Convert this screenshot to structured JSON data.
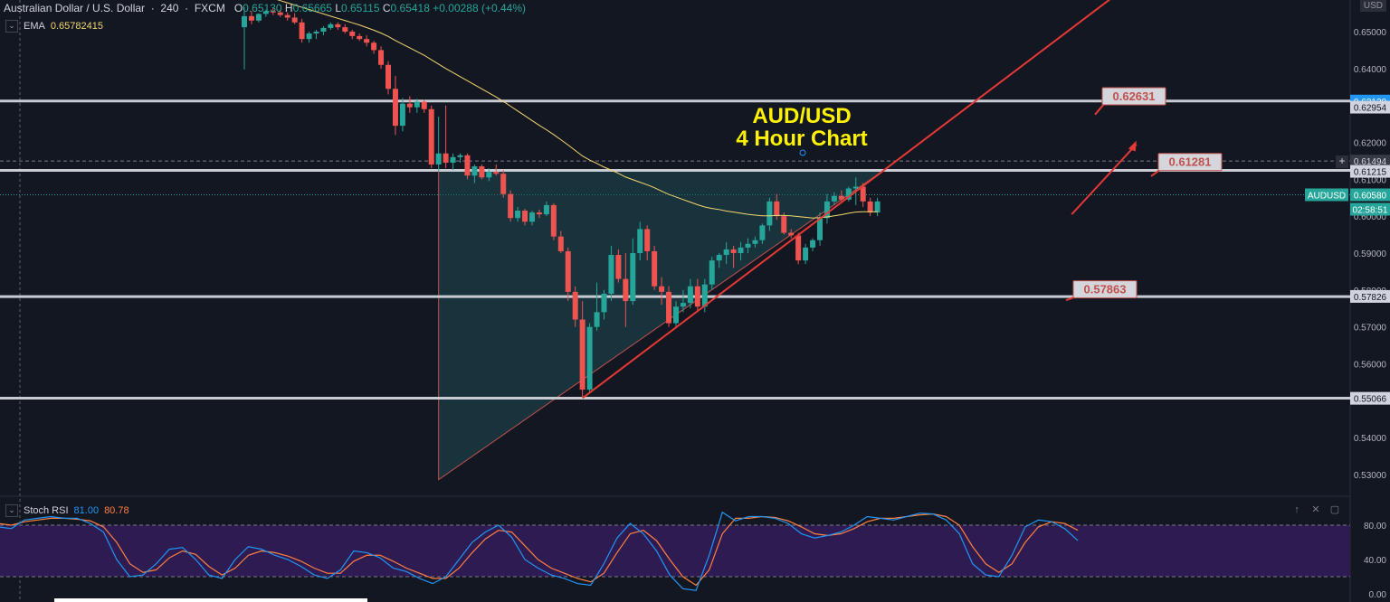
{
  "header": {
    "symbol": "Australian Dollar / U.S. Dollar",
    "interval": "240",
    "source": "FXCM",
    "o_label": "O",
    "o_value": "0.65130",
    "h_label": "H",
    "h_value": "0.65665",
    "l_label": "L",
    "l_value": "0.65115",
    "c_label": "C",
    "c_value": "0.65418",
    "change": "+0.00288 (+0.44%)"
  },
  "ema": {
    "label": "EMA",
    "value": "0.65782415"
  },
  "stoch": {
    "label": "Stoch RSI",
    "k": "81.00",
    "d": "80.78"
  },
  "currency": "USD",
  "colors": {
    "background": "#131722",
    "bull": "#26a69a",
    "bear": "#ef5350",
    "ema": "#f5d76e",
    "trendline": "#e53935",
    "triangle_fill": "#1f4a52",
    "stoch_k": "#2196f3",
    "stoch_d": "#ff7f3f",
    "stoch_band": "#2d1b52"
  },
  "chart_data": {
    "type": "candlestick",
    "title": "AUD/USD\n4 Hour Chart",
    "ylim": [
      0.523,
      0.657
    ],
    "price_ticks": [
      0.65,
      0.64,
      0.63,
      0.62,
      0.61,
      0.6,
      0.59,
      0.58,
      0.57,
      0.56,
      0.55,
      0.54,
      0.53
    ],
    "price_tick_labels": [
      "0.65000",
      "0.64000",
      "0.63000",
      "0.62000",
      "0.61000",
      "0.60000",
      "0.59000",
      "0.58000",
      "0.57000",
      "0.56000",
      "0.55000",
      "0.54000",
      "0.53000"
    ],
    "horizontal_levels": [
      0.6312,
      0.6124,
      0.5782,
      0.5507
    ],
    "axis_labels": [
      {
        "value": 0.6312,
        "text": "0.63120",
        "style": "blue"
      },
      {
        "value": 0.62954,
        "text": "0.62954",
        "style": "light"
      },
      {
        "value": 0.61494,
        "text": "0.61494",
        "style": "dark"
      },
      {
        "value": 0.61215,
        "text": "0.61215",
        "style": "light"
      },
      {
        "value": 0.6058,
        "text": "AUDUSD",
        "style": "teal"
      },
      {
        "value": 0.6058,
        "text": "0.60580",
        "style": "teal"
      },
      {
        "value": 0.6036,
        "text": "02:58:51",
        "style": "teal"
      },
      {
        "value": 0.57826,
        "text": "0.57826",
        "style": "light"
      },
      {
        "value": 0.55066,
        "text": "0.55066",
        "style": "light"
      }
    ],
    "annotations": [
      {
        "text": "0.62631",
        "price": 0.6326,
        "arrow_from_price": 0.6285
      },
      {
        "text": "0.61281",
        "price": 0.6148,
        "arrow_from_price": 0.6118
      },
      {
        "text": "0.57863",
        "price": 0.5803,
        "arrow_from_price": 0.5782
      }
    ],
    "candles": [
      [
        0.6512,
        0.6566,
        0.6398,
        0.6542
      ],
      [
        0.6542,
        0.6556,
        0.652,
        0.653
      ],
      [
        0.653,
        0.655,
        0.6525,
        0.6548
      ],
      [
        0.6548,
        0.656,
        0.654,
        0.6555
      ],
      [
        0.6555,
        0.6565,
        0.6545,
        0.6552
      ],
      [
        0.6552,
        0.656,
        0.654,
        0.6545
      ],
      [
        0.6545,
        0.6552,
        0.653,
        0.6538
      ],
      [
        0.6538,
        0.655,
        0.652,
        0.6525
      ],
      [
        0.6525,
        0.6535,
        0.647,
        0.648
      ],
      [
        0.648,
        0.65,
        0.647,
        0.6495
      ],
      [
        0.6495,
        0.6505,
        0.648,
        0.65
      ],
      [
        0.65,
        0.6515,
        0.649,
        0.651
      ],
      [
        0.651,
        0.6525,
        0.6505,
        0.652
      ],
      [
        0.652,
        0.6525,
        0.6505,
        0.6512
      ],
      [
        0.6512,
        0.652,
        0.6495,
        0.65
      ],
      [
        0.65,
        0.6505,
        0.648,
        0.6488
      ],
      [
        0.6488,
        0.6495,
        0.6475,
        0.648
      ],
      [
        0.648,
        0.649,
        0.646,
        0.647
      ],
      [
        0.647,
        0.6475,
        0.644,
        0.645
      ],
      [
        0.645,
        0.646,
        0.64,
        0.641
      ],
      [
        0.641,
        0.642,
        0.633,
        0.6345
      ],
      [
        0.6345,
        0.638,
        0.622,
        0.6245
      ],
      [
        0.6245,
        0.632,
        0.623,
        0.6305
      ],
      [
        0.6305,
        0.6325,
        0.628,
        0.6295
      ],
      [
        0.6295,
        0.6318,
        0.628,
        0.631
      ],
      [
        0.631,
        0.6315,
        0.628,
        0.629
      ],
      [
        0.629,
        0.63,
        0.613,
        0.614
      ],
      [
        0.614,
        0.627,
        0.612,
        0.617
      ],
      [
        0.617,
        0.63,
        0.613,
        0.6145
      ],
      [
        0.6145,
        0.617,
        0.6125,
        0.616
      ],
      [
        0.616,
        0.617,
        0.6145,
        0.6165
      ],
      [
        0.6165,
        0.617,
        0.61,
        0.611
      ],
      [
        0.611,
        0.614,
        0.609,
        0.6135
      ],
      [
        0.6135,
        0.614,
        0.61,
        0.6105
      ],
      [
        0.6105,
        0.613,
        0.6095,
        0.612
      ],
      [
        0.612,
        0.614,
        0.611,
        0.6115
      ],
      [
        0.6115,
        0.6125,
        0.605,
        0.606
      ],
      [
        0.606,
        0.607,
        0.5985,
        0.5995
      ],
      [
        0.5995,
        0.6025,
        0.5985,
        0.6015
      ],
      [
        0.6015,
        0.602,
        0.5975,
        0.5985
      ],
      [
        0.5985,
        0.6015,
        0.5975,
        0.601
      ],
      [
        0.601,
        0.6018,
        0.5995,
        0.6005
      ],
      [
        0.6005,
        0.604,
        0.6,
        0.603
      ],
      [
        0.603,
        0.6035,
        0.5935,
        0.5945
      ],
      [
        0.5945,
        0.596,
        0.59,
        0.5905
      ],
      [
        0.5905,
        0.5915,
        0.577,
        0.5795
      ],
      [
        0.5795,
        0.581,
        0.57,
        0.572
      ],
      [
        0.572,
        0.577,
        0.551,
        0.553
      ],
      [
        0.553,
        0.571,
        0.552,
        0.57
      ],
      [
        0.57,
        0.582,
        0.569,
        0.574
      ],
      [
        0.574,
        0.58,
        0.572,
        0.579
      ],
      [
        0.579,
        0.592,
        0.577,
        0.5895
      ],
      [
        0.5895,
        0.591,
        0.582,
        0.583
      ],
      [
        0.583,
        0.59,
        0.57,
        0.577
      ],
      [
        0.577,
        0.594,
        0.576,
        0.59
      ],
      [
        0.59,
        0.5985,
        0.588,
        0.5965
      ],
      [
        0.5965,
        0.5975,
        0.588,
        0.5905
      ],
      [
        0.5905,
        0.592,
        0.58,
        0.581
      ],
      [
        0.581,
        0.5835,
        0.576,
        0.5795
      ],
      [
        0.5795,
        0.581,
        0.57,
        0.571
      ],
      [
        0.571,
        0.577,
        0.57,
        0.5755
      ],
      [
        0.5755,
        0.58,
        0.574,
        0.5765
      ],
      [
        0.5765,
        0.583,
        0.575,
        0.581
      ],
      [
        0.581,
        0.583,
        0.574,
        0.5755
      ],
      [
        0.5755,
        0.583,
        0.574,
        0.5815
      ],
      [
        0.5815,
        0.589,
        0.58,
        0.588
      ],
      [
        0.588,
        0.59,
        0.586,
        0.5895
      ],
      [
        0.5895,
        0.593,
        0.587,
        0.591
      ],
      [
        0.591,
        0.592,
        0.586,
        0.59
      ],
      [
        0.59,
        0.593,
        0.588,
        0.5915
      ],
      [
        0.5915,
        0.594,
        0.59,
        0.5925
      ],
      [
        0.5925,
        0.5945,
        0.5915,
        0.5935
      ],
      [
        0.5935,
        0.598,
        0.5925,
        0.5975
      ],
      [
        0.5975,
        0.605,
        0.596,
        0.604
      ],
      [
        0.604,
        0.606,
        0.599,
        0.6
      ],
      [
        0.6,
        0.601,
        0.595,
        0.5955
      ],
      [
        0.5955,
        0.5965,
        0.594,
        0.5948
      ],
      [
        0.5948,
        0.5955,
        0.587,
        0.588
      ],
      [
        0.588,
        0.5925,
        0.587,
        0.5915
      ],
      [
        0.5915,
        0.594,
        0.5905,
        0.5935
      ],
      [
        0.5935,
        0.601,
        0.592,
        0.5995
      ],
      [
        0.5995,
        0.606,
        0.598,
        0.604
      ],
      [
        0.604,
        0.6065,
        0.603,
        0.6055
      ],
      [
        0.6055,
        0.607,
        0.604,
        0.6045
      ],
      [
        0.6045,
        0.608,
        0.604,
        0.6075
      ],
      [
        0.6075,
        0.6105,
        0.603,
        0.608
      ],
      [
        0.608,
        0.609,
        0.6025,
        0.604
      ],
      [
        0.604,
        0.605,
        0.6,
        0.601
      ],
      [
        0.601,
        0.605,
        0.6,
        0.604
      ]
    ],
    "ema_values": [
      0.662,
      0.6612,
      0.6604,
      0.6597,
      0.659,
      0.6584,
      0.6578,
      0.6572,
      0.6566,
      0.656,
      0.6554,
      0.6548,
      0.6542,
      0.6536,
      0.653,
      0.6524,
      0.6518,
      0.6511,
      0.6504,
      0.6496,
      0.6487,
      0.6476,
      0.6466,
      0.6456,
      0.6446,
      0.6436,
      0.6424,
      0.6412,
      0.64,
      0.6389,
      0.6378,
      0.6367,
      0.6356,
      0.6345,
      0.6334,
      0.6323,
      0.6311,
      0.6298,
      0.6285,
      0.6272,
      0.6259,
      0.6246,
      0.6234,
      0.6221,
      0.6207,
      0.6193,
      0.6178,
      0.6163,
      0.6152,
      0.6143,
      0.6133,
      0.6125,
      0.6116,
      0.6106,
      0.6099,
      0.6092,
      0.6085,
      0.6077,
      0.6068,
      0.6059,
      0.6052,
      0.6045,
      0.6038,
      0.6031,
      0.6025,
      0.6021,
      0.6018,
      0.6014,
      0.6011,
      0.6008,
      0.6005,
      0.6003,
      0.6001,
      0.6001,
      0.6002,
      0.6002,
      0.6001,
      0.5999,
      0.5997,
      0.5995,
      0.5996,
      0.5998,
      0.6001,
      0.6004,
      0.6008,
      0.6011,
      0.6012,
      0.6012,
      0.6012
    ],
    "triangle": [
      [
        27,
        0.6126
      ],
      [
        89,
        0.6126
      ],
      [
        27,
        0.5286
      ]
    ],
    "support_line": [
      [
        47,
        0.5507
      ],
      [
        89,
        0.6126
      ]
    ],
    "stoch_k": [
      78,
      76,
      86,
      88,
      90,
      88,
      88,
      82,
      72,
      40,
      20,
      22,
      35,
      52,
      54,
      40,
      22,
      18,
      40,
      55,
      52,
      45,
      40,
      32,
      22,
      18,
      28,
      50,
      48,
      42,
      30,
      26,
      18,
      12,
      20,
      40,
      60,
      72,
      80,
      66,
      40,
      30,
      22,
      18,
      12,
      10,
      35,
      65,
      82,
      70,
      50,
      22,
      6,
      4,
      45,
      95,
      85,
      90,
      90,
      88,
      82,
      70,
      65,
      68,
      72,
      80,
      90,
      88,
      86,
      90,
      94,
      93,
      86,
      70,
      35,
      22,
      20,
      45,
      78,
      86,
      84,
      76,
      62
    ],
    "stoch_d": [
      82,
      80,
      84,
      86,
      88,
      88,
      87,
      85,
      78,
      60,
      35,
      25,
      28,
      42,
      50,
      46,
      32,
      22,
      30,
      45,
      50,
      48,
      44,
      38,
      30,
      24,
      24,
      38,
      45,
      45,
      38,
      30,
      24,
      18,
      18,
      30,
      48,
      64,
      74,
      72,
      56,
      40,
      30,
      24,
      18,
      14,
      24,
      48,
      70,
      74,
      62,
      40,
      20,
      10,
      28,
      70,
      88,
      88,
      90,
      89,
      85,
      78,
      70,
      68,
      70,
      76,
      84,
      88,
      88,
      90,
      92,
      93,
      90,
      80,
      55,
      35,
      25,
      35,
      60,
      78,
      84,
      82,
      74
    ],
    "stoch_ticks": [
      80,
      40,
      0
    ],
    "stoch_tick_labels": [
      "80.00",
      "40.00",
      "0.00"
    ],
    "stoch_band": [
      80,
      20
    ]
  }
}
